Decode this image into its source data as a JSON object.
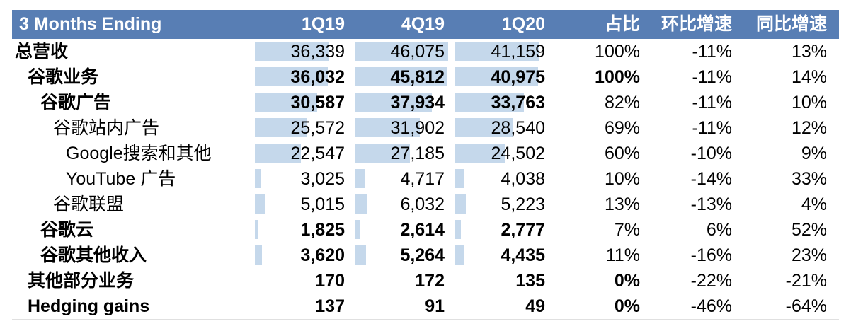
{
  "chart_data": {
    "type": "table",
    "title": "",
    "header_label": "3 Months Ending",
    "columns": [
      "1Q19",
      "4Q19",
      "1Q20",
      "占比",
      "环比增速",
      "同比增速"
    ],
    "bar_max": 46075,
    "colors": {
      "header_bg": "#587EB4",
      "bar_fill": "#C5D8EB",
      "header_text": "#FFFFFF",
      "body_text": "#000000"
    },
    "rows": [
      {
        "label": "总营收",
        "indent": 0,
        "label_bold": true,
        "values_bold": false,
        "values": [
          "36,339",
          "46,075",
          "41,159"
        ],
        "share": "100%",
        "share_bold": false,
        "qoq": "-11%",
        "yoy": "13%"
      },
      {
        "label": "谷歌业务",
        "indent": 1,
        "label_bold": true,
        "values_bold": true,
        "values": [
          "36,032",
          "45,812",
          "40,975"
        ],
        "share": "100%",
        "share_bold": true,
        "qoq": "-11%",
        "yoy": "14%"
      },
      {
        "label": "谷歌广告",
        "indent": 2,
        "label_bold": true,
        "values_bold": true,
        "values": [
          "30,587",
          "37,934",
          "33,763"
        ],
        "share": "82%",
        "share_bold": false,
        "qoq": "-11%",
        "yoy": "10%"
      },
      {
        "label": "谷歌站内广告",
        "indent": 3,
        "label_bold": false,
        "values_bold": false,
        "values": [
          "25,572",
          "31,902",
          "28,540"
        ],
        "share": "69%",
        "share_bold": false,
        "qoq": "-11%",
        "yoy": "12%"
      },
      {
        "label": "Google搜索和其他",
        "indent": 4,
        "label_bold": false,
        "values_bold": false,
        "values": [
          "22,547",
          "27,185",
          "24,502"
        ],
        "share": "60%",
        "share_bold": false,
        "qoq": "-10%",
        "yoy": "9%"
      },
      {
        "label": "YouTube 广告",
        "indent": 4,
        "label_bold": false,
        "values_bold": false,
        "values": [
          "3,025",
          "4,717",
          "4,038"
        ],
        "share": "10%",
        "share_bold": false,
        "qoq": "-14%",
        "yoy": "33%"
      },
      {
        "label": "谷歌联盟",
        "indent": 3,
        "label_bold": false,
        "values_bold": false,
        "values": [
          "5,015",
          "6,032",
          "5,223"
        ],
        "share": "13%",
        "share_bold": false,
        "qoq": "-13%",
        "yoy": "4%"
      },
      {
        "label": "谷歌云",
        "indent": 2,
        "label_bold": true,
        "values_bold": true,
        "values": [
          "1,825",
          "2,614",
          "2,777"
        ],
        "share": "7%",
        "share_bold": false,
        "qoq": "6%",
        "yoy": "52%"
      },
      {
        "label": "谷歌其他收入",
        "indent": 2,
        "label_bold": true,
        "values_bold": true,
        "values": [
          "3,620",
          "5,264",
          "4,435"
        ],
        "share": "11%",
        "share_bold": false,
        "qoq": "-16%",
        "yoy": "23%"
      },
      {
        "label": "其他部分业务",
        "indent": 1,
        "label_bold": true,
        "values_bold": true,
        "values": [
          "170",
          "172",
          "135"
        ],
        "share": "0%",
        "share_bold": true,
        "qoq": "-22%",
        "yoy": "-21%"
      },
      {
        "label": "Hedging gains",
        "indent": 1,
        "label_bold": true,
        "values_bold": true,
        "values": [
          "137",
          "91",
          "49"
        ],
        "share": "0%",
        "share_bold": true,
        "qoq": "-46%",
        "yoy": "-64%"
      }
    ]
  }
}
